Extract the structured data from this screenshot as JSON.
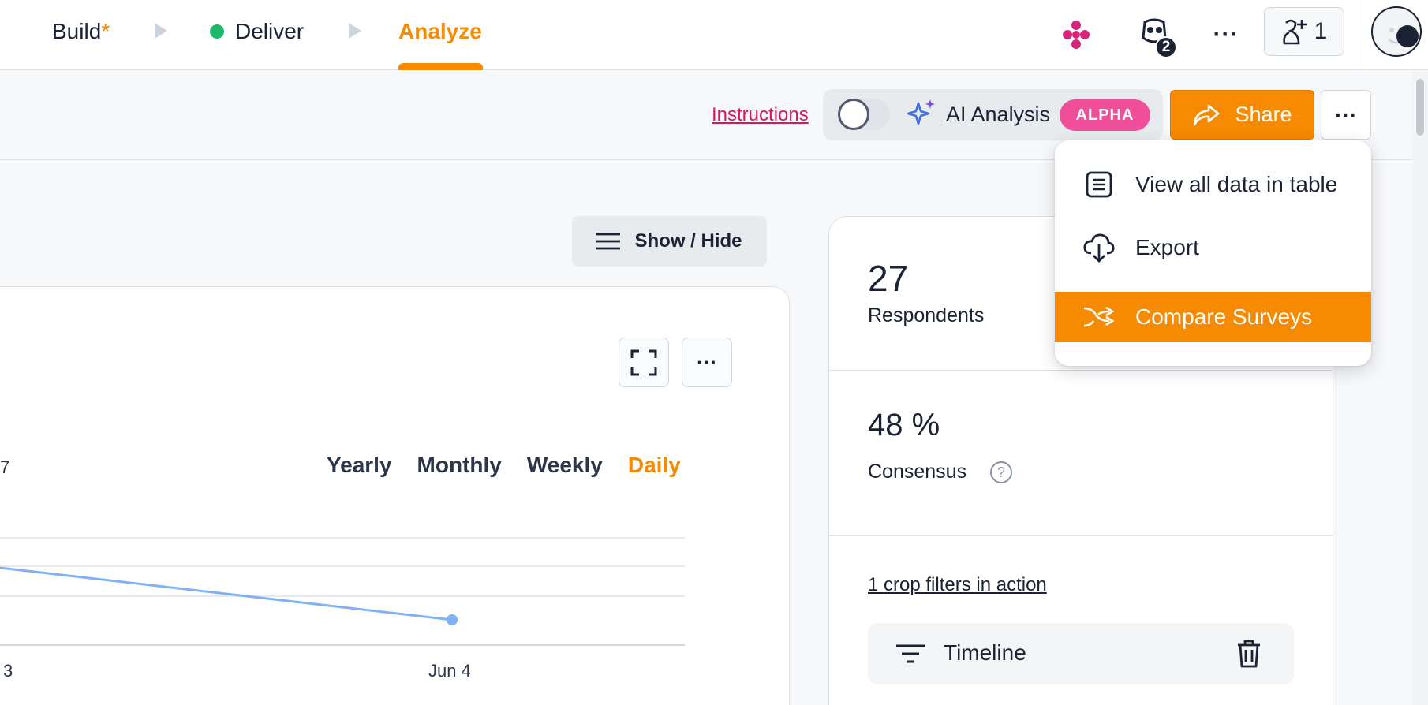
{
  "steps": {
    "build_label": "Build",
    "build_marker": "*",
    "deliver_label": "Deliver",
    "analyze_label": "Analyze"
  },
  "topbar": {
    "robot_badge": "2",
    "more_label": "···",
    "invite_count": "1"
  },
  "toolbar": {
    "instructions_label": "Instructions",
    "ai_analysis_label": "AI Analysis",
    "alpha_badge": "ALPHA",
    "share_label": "Share",
    "more_label": "···"
  },
  "dropdown": {
    "items": [
      {
        "label": "View all data in table",
        "icon": "table-list-icon"
      },
      {
        "label": "Export",
        "icon": "cloud-download-icon"
      },
      {
        "label": "Compare Surveys",
        "icon": "compare-arrows-icon",
        "highlighted": true
      }
    ]
  },
  "main": {
    "show_hide_label": "Show / Hide",
    "chart_more_label": "···",
    "left_stub": "7",
    "periods": [
      "Yearly",
      "Monthly",
      "Weekly",
      "Daily"
    ],
    "active_period": "Daily"
  },
  "chart_data": {
    "type": "line",
    "x": [
      "3",
      "Jun 4"
    ],
    "series": [
      {
        "values": [
          null,
          null
        ]
      }
    ],
    "grid": true,
    "color": "#7fb2f5"
  },
  "stats": {
    "respondents_value": "27",
    "respondents_label": "Respondents",
    "consensus_value": "48 %",
    "consensus_label": "Consensus",
    "help_glyph": "?",
    "crop_filters_link": "1 crop filters in action",
    "timeline_label": "Timeline"
  },
  "colors": {
    "accent": "#f68a00",
    "alpha_pink": "#f04e99",
    "link_red": "#d6185f",
    "deliver_green": "#1fb86a",
    "chart_line": "#7fb2f5"
  }
}
